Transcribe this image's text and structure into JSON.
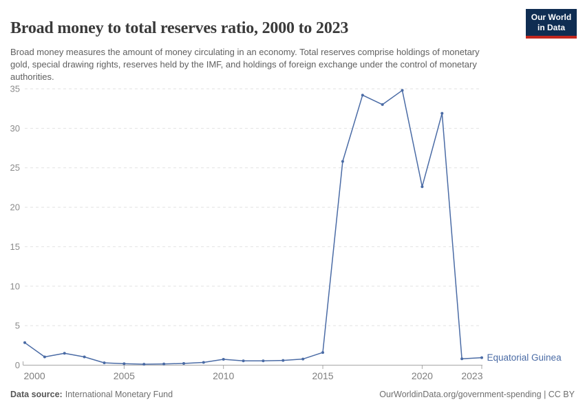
{
  "header": {
    "title": "Broad money to total reserves ratio, 2000 to 2023",
    "subtitle": "Broad money measures the amount of money circulating in an economy. Total reserves comprise holdings of monetary gold, special drawing rights, reserves held by the IMF, and holdings of foreign exchange under the control of monetary authorities.",
    "logo": {
      "line1": "Our World",
      "line2": "in Data",
      "bg_color": "#0f2d52",
      "bar_color": "#c2271e"
    }
  },
  "chart_data": {
    "type": "line",
    "title": "Broad money to total reserves ratio, 2000 to 2023",
    "x": [
      2000,
      2001,
      2002,
      2003,
      2004,
      2005,
      2006,
      2007,
      2008,
      2009,
      2010,
      2011,
      2012,
      2013,
      2014,
      2015,
      2016,
      2017,
      2018,
      2019,
      2020,
      2021,
      2022,
      2023
    ],
    "series": [
      {
        "name": "Equatorial Guinea",
        "color": "#4a6ba5",
        "values": [
          2.85,
          1.05,
          1.5,
          1.05,
          0.3,
          0.18,
          0.12,
          0.16,
          0.22,
          0.35,
          0.74,
          0.55,
          0.55,
          0.6,
          0.78,
          1.6,
          25.8,
          34.2,
          33.0,
          34.8,
          22.6,
          31.9,
          0.8,
          0.95
        ]
      }
    ],
    "xlabel": "",
    "ylabel": "",
    "xlim": [
      2000,
      2023
    ],
    "ylim": [
      0,
      35
    ],
    "y_ticks": [
      0,
      5,
      10,
      15,
      20,
      25,
      30,
      35
    ],
    "x_ticks": [
      2000,
      2005,
      2010,
      2015,
      2020,
      2023
    ],
    "x_tick_labels": [
      "2000",
      "2005",
      "2010",
      "2015",
      "2020",
      "2023"
    ],
    "grid": "horizontal-dashed",
    "legend_position": "end-of-line-label",
    "colors": {
      "grid": "#e2e2e2",
      "axis": "#a5a5a5",
      "tick_label": "#8a8a8a"
    }
  },
  "footer": {
    "source_label": "Data source:",
    "source_value": "International Monetary Fund",
    "credit": "OurWorldinData.org/government-spending | CC BY"
  }
}
